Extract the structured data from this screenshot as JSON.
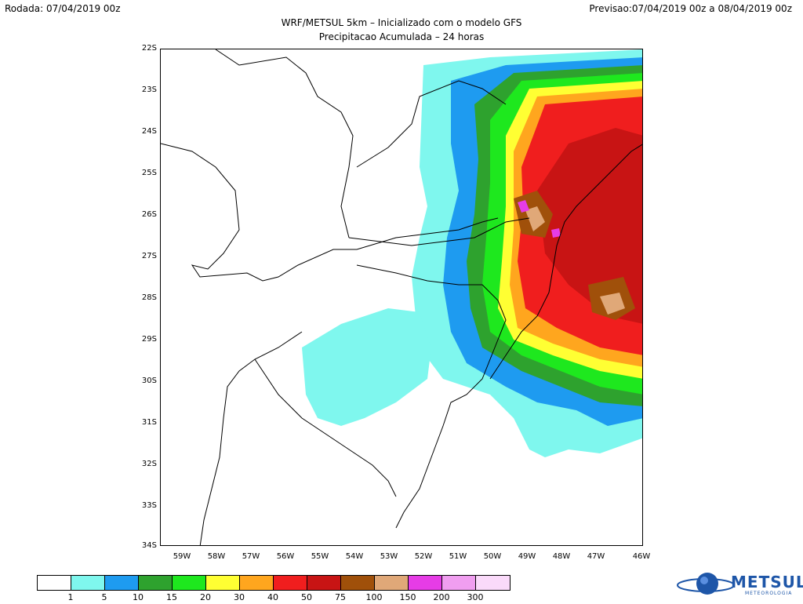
{
  "header": {
    "rodada": "Rodada: 07/04/2019 00z",
    "previsao": "Previsao:07/04/2019 00z a 08/04/2019 00z",
    "title": "WRF/METSUL 5km – Inicializado com o modelo GFS",
    "subtitle": "Precipitacao Acumulada – 24 horas"
  },
  "axes": {
    "lat_ticks": [
      "22S",
      "23S",
      "24S",
      "25S",
      "26S",
      "27S",
      "28S",
      "29S",
      "30S",
      "31S",
      "32S",
      "33S",
      "34S"
    ],
    "lon_ticks": [
      "59W",
      "58W",
      "57W",
      "56W",
      "55W",
      "54W",
      "53W",
      "52W",
      "51W",
      "50W",
      "49W",
      "48W",
      "47W",
      "46W"
    ],
    "lat_range": [
      -34,
      -22
    ],
    "lon_range": [
      -59.5,
      -46
    ]
  },
  "legend": {
    "colors": [
      "#ffffff",
      "#7ff7ee",
      "#1e9bf0",
      "#2ea22e",
      "#1ee81e",
      "#ffff33",
      "#ffa61e",
      "#f01e1e",
      "#c81414",
      "#a0500a",
      "#e0a878",
      "#e63ce6",
      "#f09ef0",
      "#fadafa"
    ],
    "labels": [
      "1",
      "5",
      "10",
      "15",
      "20",
      "30",
      "40",
      "50",
      "75",
      "100",
      "150",
      "200",
      "300"
    ]
  },
  "logo": {
    "name": "METSUL",
    "tagline": "METEOROLOGIA"
  }
}
